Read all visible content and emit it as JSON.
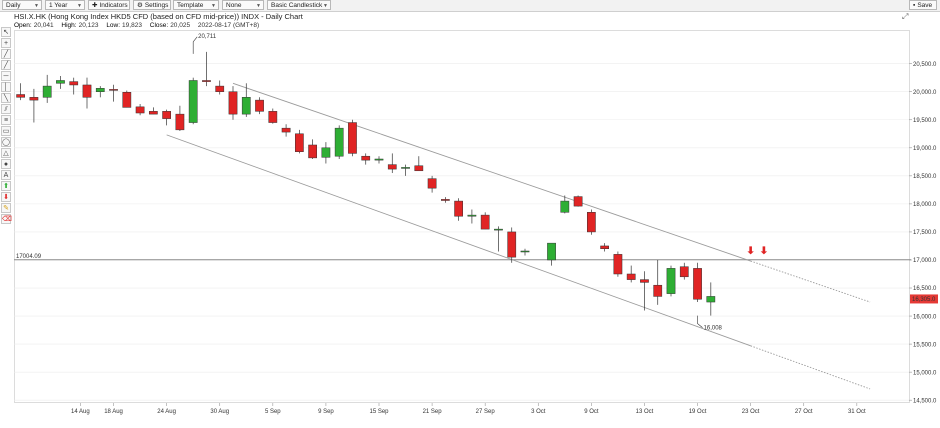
{
  "toolbar": {
    "items": [
      {
        "label": "Daily",
        "icon": ""
      },
      {
        "label": "1 Year",
        "icon": ""
      },
      {
        "label": "Indicators",
        "icon": "plus-icon"
      },
      {
        "label": "Settings",
        "icon": "gear-icon"
      },
      {
        "label": "Template",
        "icon": ""
      },
      {
        "label": "None",
        "icon": ""
      },
      {
        "label": "Basic Candlestick",
        "icon": ""
      }
    ],
    "save_label": "Save"
  },
  "header": {
    "title": "HSI.X.HK (Hong Kong Index HKD5 CFD (based on CFD mid-price)) INDX - Daily Chart",
    "ohlc": [
      {
        "k": "Open:",
        "v": "20,041"
      },
      {
        "k": "High:",
        "v": "20,123"
      },
      {
        "k": "Low:",
        "v": "19,823"
      },
      {
        "k": "Close:",
        "v": "20,025"
      },
      {
        "k": "",
        "v": "2022-08-17 (GMT+8)"
      }
    ]
  },
  "tools": [
    "cursor-icon",
    "crosshair-icon",
    "line-icon",
    "ray-icon",
    "horizontal-line-icon",
    "vertical-line-icon",
    "trend-line-icon",
    "channel-icon",
    "fib-icon",
    "rectangle-icon",
    "ellipse-icon",
    "triangle-icon",
    "circle-icon",
    "text-icon",
    "arrow-up-icon",
    "arrow-down-icon",
    "pencil-icon",
    "eraser-icon"
  ],
  "colors": {
    "up": "#2eae34",
    "down": "#e02424",
    "channel": "#9b9b9b",
    "label_bg": "#e53935",
    "grid": "#ececec"
  },
  "chart_data": {
    "type": "candlestick",
    "y_ticks": [
      "20,500.0",
      "20,000.0",
      "19,500.0",
      "19,000.0",
      "18,500.0",
      "18,000.0",
      "17,500.0",
      "17,000.0",
      "16,500.0",
      "16,000.0",
      "15,500.0",
      "15,000.0",
      "14,500.0"
    ],
    "y_tick_values": [
      20500,
      20000,
      19500,
      19000,
      18500,
      18000,
      17500,
      17000,
      16500,
      16000,
      15500,
      15000,
      14500
    ],
    "ylim": [
      14450,
      21100
    ],
    "x_tick_labels": [
      "14 Aug",
      "18 Aug",
      "24 Aug",
      "30 Aug",
      "5 Sep",
      "9 Sep",
      "15 Sep",
      "21 Sep",
      "27 Sep",
      "3 Oct",
      "9 Oct",
      "13 Oct",
      "19 Oct",
      "23 Oct",
      "27 Oct",
      "31 Oct"
    ],
    "x_tick_slots": [
      5.5,
      8,
      12,
      16,
      20,
      24,
      28,
      32,
      36,
      40,
      44,
      48,
      52,
      56,
      60,
      64
    ],
    "slot_range": [
      1,
      66
    ],
    "candles": [
      {
        "date": "2022-08-08",
        "o": 19950,
        "h": 20150,
        "l": 19850,
        "c": 19900
      },
      {
        "date": "2022-08-09",
        "o": 19900,
        "h": 20050,
        "l": 19450,
        "c": 19850
      },
      {
        "date": "2022-08-10",
        "o": 19900,
        "h": 20300,
        "l": 19800,
        "c": 20100
      },
      {
        "date": "2022-08-11",
        "o": 20150,
        "h": 20280,
        "l": 20050,
        "c": 20200
      },
      {
        "date": "2022-08-12",
        "o": 20180,
        "h": 20250,
        "l": 19950,
        "c": 20120
      },
      {
        "date": "2022-08-15",
        "o": 20120,
        "h": 20250,
        "l": 19700,
        "c": 19900
      },
      {
        "date": "2022-08-16",
        "o": 20000,
        "h": 20100,
        "l": 19900,
        "c": 20060
      },
      {
        "date": "2022-08-17",
        "o": 20041,
        "h": 20123,
        "l": 19823,
        "c": 20025
      },
      {
        "date": "2022-08-18",
        "o": 19990,
        "h": 20020,
        "l": 19720,
        "c": 19720
      },
      {
        "date": "2022-08-19",
        "o": 19730,
        "h": 19780,
        "l": 19580,
        "c": 19620
      },
      {
        "date": "2022-08-22",
        "o": 19650,
        "h": 19720,
        "l": 19600,
        "c": 19600
      },
      {
        "date": "2022-08-23",
        "o": 19650,
        "h": 19680,
        "l": 19400,
        "c": 19520
      },
      {
        "date": "2022-08-24",
        "o": 19600,
        "h": 19750,
        "l": 19300,
        "c": 19320
      },
      {
        "date": "2022-08-25",
        "o": 19450,
        "h": 20250,
        "l": 19420,
        "c": 20200
      },
      {
        "date": "2022-08-26",
        "o": 20200,
        "h": 20711,
        "l": 20100,
        "c": 20180
      },
      {
        "date": "2022-08-29",
        "o": 20100,
        "h": 20200,
        "l": 19950,
        "c": 20000
      },
      {
        "date": "2022-08-30",
        "o": 20000,
        "h": 20100,
        "l": 19500,
        "c": 19600
      },
      {
        "date": "2022-08-31",
        "o": 19600,
        "h": 20150,
        "l": 19550,
        "c": 19900
      },
      {
        "date": "2022-09-01",
        "o": 19850,
        "h": 19900,
        "l": 19600,
        "c": 19650
      },
      {
        "date": "2022-09-02",
        "o": 19650,
        "h": 19700,
        "l": 19430,
        "c": 19450
      },
      {
        "date": "2022-09-05",
        "o": 19350,
        "h": 19420,
        "l": 19200,
        "c": 19280
      },
      {
        "date": "2022-09-06",
        "o": 19250,
        "h": 19320,
        "l": 18900,
        "c": 18930
      },
      {
        "date": "2022-09-07",
        "o": 19050,
        "h": 19150,
        "l": 18800,
        "c": 18820
      },
      {
        "date": "2022-09-08",
        "o": 18830,
        "h": 19100,
        "l": 18720,
        "c": 19000
      },
      {
        "date": "2022-09-09",
        "o": 18850,
        "h": 19400,
        "l": 18800,
        "c": 19350
      },
      {
        "date": "2022-09-13",
        "o": 19450,
        "h": 19500,
        "l": 18850,
        "c": 18900
      },
      {
        "date": "2022-09-14",
        "o": 18850,
        "h": 18900,
        "l": 18700,
        "c": 18780
      },
      {
        "date": "2022-09-15",
        "o": 18780,
        "h": 18850,
        "l": 18720,
        "c": 18800
      },
      {
        "date": "2022-09-16",
        "o": 18700,
        "h": 18900,
        "l": 18550,
        "c": 18620
      },
      {
        "date": "2022-09-19",
        "o": 18650,
        "h": 18700,
        "l": 18500,
        "c": 18650
      },
      {
        "date": "2022-09-20",
        "o": 18680,
        "h": 18850,
        "l": 18600,
        "c": 18590
      },
      {
        "date": "2022-09-21",
        "o": 18450,
        "h": 18500,
        "l": 18200,
        "c": 18280
      },
      {
        "date": "2022-09-22",
        "o": 18080,
        "h": 18120,
        "l": 18020,
        "c": 18060
      },
      {
        "date": "2022-09-23",
        "o": 18050,
        "h": 18100,
        "l": 17700,
        "c": 17780
      },
      {
        "date": "2022-09-26",
        "o": 17780,
        "h": 17900,
        "l": 17650,
        "c": 17800
      },
      {
        "date": "2022-09-27",
        "o": 17800,
        "h": 17850,
        "l": 17550,
        "c": 17550
      },
      {
        "date": "2022-09-28",
        "o": 17550,
        "h": 17600,
        "l": 17150,
        "c": 17550
      },
      {
        "date": "2022-09-29",
        "o": 17500,
        "h": 17580,
        "l": 16950,
        "c": 17050
      },
      {
        "date": "2022-09-30",
        "o": 17150,
        "h": 17200,
        "l": 17080,
        "c": 17160
      },
      {
        "date": "2022-10-03",
        "o": 17000,
        "h": 17250,
        "l": 16900,
        "c": 17300
      },
      {
        "date": "2022-10-05",
        "o": 17850,
        "h": 18150,
        "l": 17830,
        "c": 18050
      },
      {
        "date": "2022-10-06",
        "o": 18130,
        "h": 18150,
        "l": 17950,
        "c": 17960
      },
      {
        "date": "2022-10-07",
        "o": 17850,
        "h": 17900,
        "l": 17450,
        "c": 17500
      },
      {
        "date": "2022-10-10",
        "o": 17250,
        "h": 17300,
        "l": 17150,
        "c": 17200
      },
      {
        "date": "2022-10-11",
        "o": 17100,
        "h": 17150,
        "l": 16700,
        "c": 16750
      },
      {
        "date": "2022-10-12",
        "o": 16750,
        "h": 16900,
        "l": 16600,
        "c": 16650
      },
      {
        "date": "2022-10-13",
        "o": 16650,
        "h": 16800,
        "l": 16100,
        "c": 16600
      },
      {
        "date": "2022-10-14",
        "o": 16550,
        "h": 17000,
        "l": 16200,
        "c": 16350
      },
      {
        "date": "2022-10-17",
        "o": 16400,
        "h": 16900,
        "l": 16350,
        "c": 16850
      },
      {
        "date": "2022-10-18",
        "o": 16880,
        "h": 16950,
        "l": 16650,
        "c": 16700
      },
      {
        "date": "2022-10-19",
        "o": 16850,
        "h": 16950,
        "l": 16250,
        "c": 16300
      },
      {
        "date": "2022-10-20",
        "o": 16250,
        "h": 16600,
        "l": 16008,
        "c": 16350
      }
    ],
    "candle_slots": [
      1,
      2,
      3,
      4,
      5,
      6,
      7,
      8,
      9,
      10,
      11,
      12,
      13,
      14,
      15,
      16,
      17,
      18,
      19,
      20,
      21,
      22,
      23,
      24,
      25,
      26,
      27,
      28,
      29,
      30,
      31,
      32,
      33,
      34,
      35,
      36,
      37,
      38,
      39,
      41,
      42,
      43,
      44,
      45,
      46,
      47,
      48,
      49,
      50,
      51,
      52,
      53
    ],
    "channel": [
      {
        "role": "upper",
        "from": {
          "slot": 17,
          "value": 20150
        },
        "to": {
          "slot": 65,
          "value": 16250
        }
      },
      {
        "role": "lower",
        "from": {
          "slot": 12,
          "value": 19230
        },
        "to": {
          "slot": 65,
          "value": 14700
        }
      }
    ],
    "extend_from_slot": 56,
    "horizontal_line": {
      "value": 17004.09,
      "label": "17004.09"
    },
    "annotations": [
      {
        "text": "20,711",
        "slot": 14,
        "value": 20711
      },
      {
        "text": "16,008",
        "slot": 52,
        "value": 16008
      }
    ],
    "signal_arrows": [
      {
        "slot": 56,
        "value": 17100
      },
      {
        "slot": 57,
        "value": 17100
      }
    ],
    "last_price": {
      "text": "16,305.0",
      "value": 16305
    }
  }
}
